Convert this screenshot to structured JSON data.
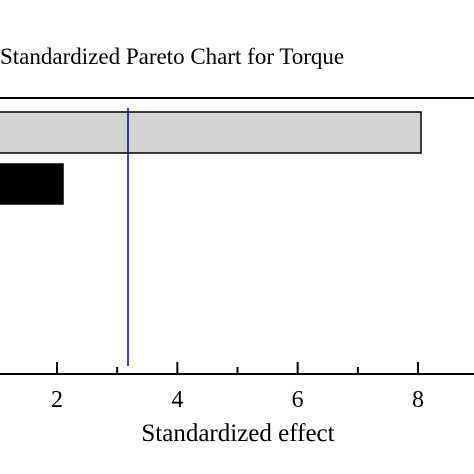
{
  "chart_data": {
    "type": "bar",
    "orientation": "horizontal",
    "title": "Standardized Pareto Chart for Torque",
    "xlabel": "Standardized effect",
    "ylabel": "",
    "x_ticks": [
      2,
      4,
      6,
      8
    ],
    "xlim": [
      0,
      9
    ],
    "bars": [
      {
        "value": 8.05,
        "sign": "positive",
        "color": "#d3d3d3"
      },
      {
        "value": 2.1,
        "sign": "negative",
        "color": "#000000"
      }
    ],
    "reference_line": {
      "value": 3.18,
      "color": "#0000cc"
    },
    "grid": false,
    "legend": "none"
  }
}
